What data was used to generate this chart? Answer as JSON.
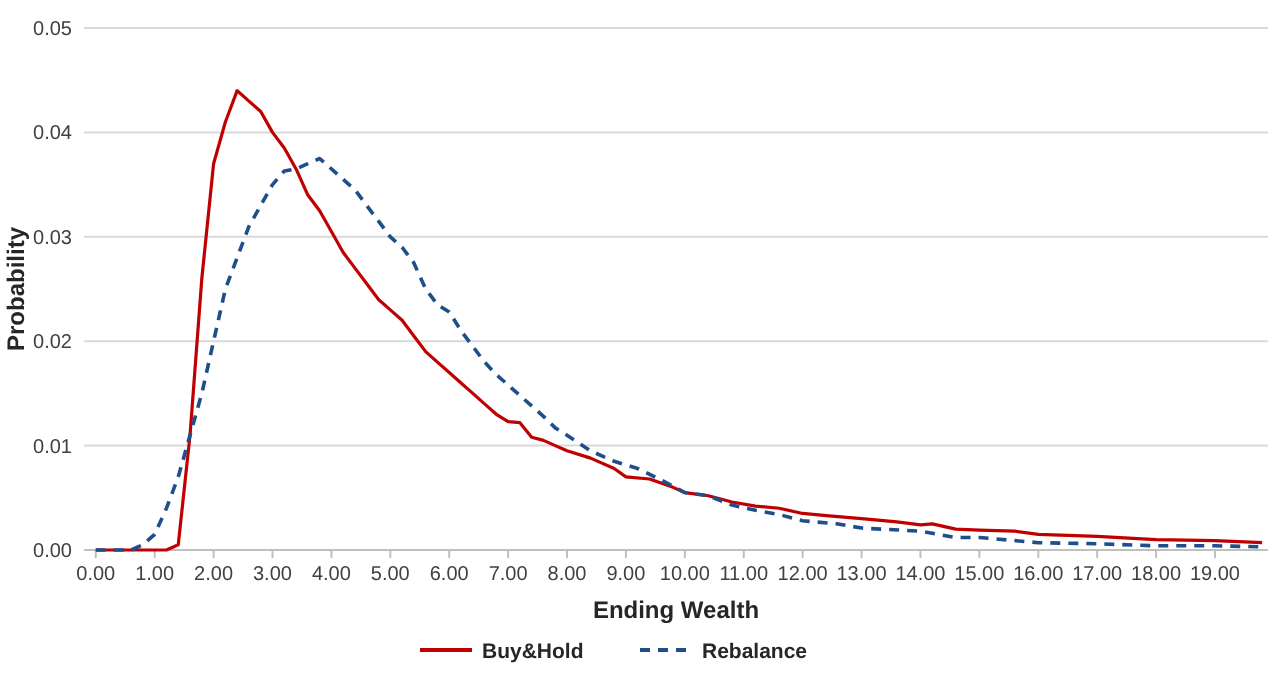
{
  "chart_data": {
    "type": "line",
    "xlabel": "Ending Wealth",
    "ylabel": "Probability",
    "xlim": [
      -0.2,
      19.9
    ],
    "xticks": [
      {
        "value": 0,
        "label": "0.00"
      },
      {
        "value": 1,
        "label": "1.00"
      },
      {
        "value": 2,
        "label": "2.00"
      },
      {
        "value": 3,
        "label": "3.00"
      },
      {
        "value": 4,
        "label": "4.00"
      },
      {
        "value": 5,
        "label": "5.00"
      },
      {
        "value": 6,
        "label": "6.00"
      },
      {
        "value": 7,
        "label": "7.00"
      },
      {
        "value": 8,
        "label": "8.00"
      },
      {
        "value": 9,
        "label": "9.00"
      },
      {
        "value": 10,
        "label": "10.00"
      },
      {
        "value": 11,
        "label": "11.00"
      },
      {
        "value": 12,
        "label": "12.00"
      },
      {
        "value": 13,
        "label": "13.00"
      },
      {
        "value": 14,
        "label": "14.00"
      },
      {
        "value": 15,
        "label": "15.00"
      },
      {
        "value": 16,
        "label": "16.00"
      },
      {
        "value": 17,
        "label": "17.00"
      },
      {
        "value": 18,
        "label": "18.00"
      },
      {
        "value": 19,
        "label": "19.00"
      }
    ],
    "ylim": [
      0,
      0.05
    ],
    "yticks": [
      {
        "value": 0,
        "label": "0.00"
      },
      {
        "value": 0.01,
        "label": "0.01"
      },
      {
        "value": 0.02,
        "label": "0.02"
      },
      {
        "value": 0.03,
        "label": "0.03"
      },
      {
        "value": 0.04,
        "label": "0.04"
      },
      {
        "value": 0.05,
        "label": "0.05"
      }
    ],
    "grid": "y",
    "legend": "bottom",
    "marker": "none",
    "series": [
      {
        "name": "Buy&Hold",
        "color": "#c00000",
        "line_style": "solid",
        "x": [
          0,
          0.4,
          0.8,
          1.2,
          1.4,
          1.6,
          1.8,
          2.0,
          2.2,
          2.4,
          2.6,
          2.8,
          3.0,
          3.2,
          3.4,
          3.6,
          3.8,
          4.0,
          4.2,
          4.4,
          4.6,
          4.8,
          5.0,
          5.2,
          5.4,
          5.6,
          5.8,
          6.0,
          6.2,
          6.4,
          6.6,
          6.8,
          7.0,
          7.2,
          7.4,
          7.6,
          7.8,
          8.0,
          8.4,
          8.8,
          9.0,
          9.4,
          9.8,
          10.0,
          10.4,
          10.8,
          11.2,
          11.6,
          12.0,
          12.4,
          13.0,
          13.6,
          14.0,
          14.2,
          14.6,
          15.0,
          15.6,
          16.0,
          17.0,
          18.0,
          19.0,
          19.8
        ],
        "values": [
          0,
          0,
          0,
          0,
          0.0005,
          0.011,
          0.026,
          0.037,
          0.041,
          0.044,
          0.043,
          0.042,
          0.04,
          0.0385,
          0.0365,
          0.034,
          0.0325,
          0.0305,
          0.0285,
          0.027,
          0.0255,
          0.024,
          0.023,
          0.022,
          0.0205,
          0.019,
          0.018,
          0.017,
          0.016,
          0.015,
          0.014,
          0.013,
          0.0123,
          0.0122,
          0.0108,
          0.0105,
          0.01,
          0.0095,
          0.0088,
          0.0078,
          0.007,
          0.0068,
          0.006,
          0.0055,
          0.0052,
          0.0046,
          0.0042,
          0.004,
          0.0035,
          0.0033,
          0.003,
          0.0027,
          0.0024,
          0.0025,
          0.002,
          0.0019,
          0.0018,
          0.0015,
          0.0013,
          0.001,
          0.0009,
          0.0007
        ]
      },
      {
        "name": "Rebalance",
        "color": "#1f4e8c",
        "line_style": "dashed",
        "x": [
          0,
          0.4,
          0.6,
          0.8,
          1.0,
          1.2,
          1.4,
          1.6,
          1.8,
          2.0,
          2.2,
          2.4,
          2.6,
          2.8,
          3.0,
          3.2,
          3.4,
          3.6,
          3.8,
          4.0,
          4.2,
          4.4,
          4.6,
          4.8,
          5.0,
          5.2,
          5.4,
          5.6,
          5.8,
          6.0,
          6.2,
          6.4,
          6.6,
          6.8,
          7.0,
          7.2,
          7.4,
          7.6,
          7.8,
          8.0,
          8.4,
          8.8,
          9.2,
          9.6,
          10.0,
          10.4,
          10.8,
          11.2,
          11.6,
          12.0,
          12.6,
          13.0,
          14.0,
          14.6,
          15.0,
          16.0,
          17.0,
          18.0,
          19.0,
          19.8
        ],
        "values": [
          0,
          0,
          0,
          0.0005,
          0.0015,
          0.004,
          0.007,
          0.011,
          0.015,
          0.02,
          0.025,
          0.028,
          0.031,
          0.033,
          0.035,
          0.0363,
          0.0365,
          0.037,
          0.0375,
          0.0365,
          0.0355,
          0.0345,
          0.033,
          0.0315,
          0.03,
          0.029,
          0.0275,
          0.025,
          0.0235,
          0.0228,
          0.021,
          0.0195,
          0.018,
          0.0168,
          0.0158,
          0.0148,
          0.0138,
          0.0128,
          0.0117,
          0.011,
          0.0095,
          0.0085,
          0.0078,
          0.0067,
          0.0055,
          0.0052,
          0.0043,
          0.0038,
          0.0034,
          0.0028,
          0.0025,
          0.0021,
          0.0018,
          0.0012,
          0.0012,
          0.0007,
          0.0006,
          0.0004,
          0.0004,
          0.0003
        ]
      }
    ]
  }
}
